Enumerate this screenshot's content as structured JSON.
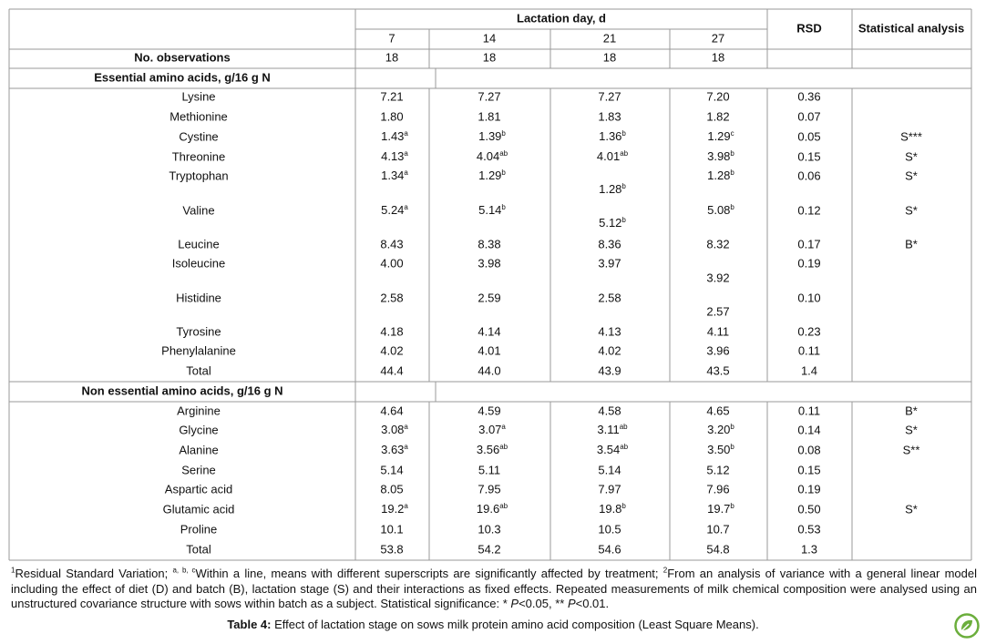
{
  "table": {
    "header": {
      "group": "Lactation day, d",
      "days": [
        "7",
        "14",
        "21",
        "27"
      ],
      "rsd": "RSD",
      "stat": "Statistical analysis"
    },
    "observations": {
      "label": "No. observations",
      "values": [
        "18",
        "18",
        "18",
        "18"
      ]
    },
    "sections": [
      {
        "title": "Essential amino acids, g/16 g N",
        "rows": [
          {
            "name": "Lysine",
            "values": [
              "7.21",
              "7.27",
              "7.27",
              "7.20"
            ],
            "rsd": "0.36"
          },
          {
            "name": "Methionine",
            "values": [
              "1.80",
              "1.81",
              "1.83",
              "1.82"
            ],
            "rsd": "0.07"
          },
          {
            "name": "Cystine",
            "values": [
              [
                "1.43",
                "a"
              ],
              [
                "1.39",
                "b"
              ],
              [
                "1.36",
                "b"
              ],
              [
                "1.29",
                "c"
              ]
            ],
            "rsd": "0.05",
            "stat": "S***"
          },
          {
            "name": "Threonine",
            "values": [
              [
                "4.13",
                "a"
              ],
              [
                "4.04",
                "ab"
              ],
              [
                "4.01",
                "ab"
              ],
              [
                "3.98",
                "b"
              ]
            ],
            "rsd": "0.15",
            "stat": "S*"
          },
          {
            "name": "Tryptophan",
            "values": [
              [
                "1.34",
                "a"
              ],
              [
                "1.29",
                "b"
              ],
              [
                "1.28",
                "b"
              ],
              [
                "1.28",
                "b"
              ]
            ],
            "rsd": "0.06",
            "stat": "S*"
          },
          {
            "name": "Valine",
            "values": [
              [
                "5.24",
                "a"
              ],
              [
                "5.14",
                "b"
              ],
              [
                "5.12",
                "b"
              ],
              [
                "5.08",
                "b"
              ]
            ],
            "rsd": "0.12",
            "stat": "S*"
          },
          {
            "name": "Leucine",
            "values": [
              "8.43",
              "8.38",
              "8.36",
              "8.32"
            ],
            "rsd": "0.17",
            "stat": "B*"
          },
          {
            "name": "Isoleucine",
            "values": [
              "4.00",
              "3.98",
              "3.97",
              "3.92"
            ],
            "rsd": "0.19"
          },
          {
            "name": "Histidine",
            "values": [
              "2.58",
              "2.59",
              "2.58",
              "2.57"
            ],
            "rsd": "0.10"
          },
          {
            "name": "Tyrosine",
            "values": [
              "4.18",
              "4.14",
              "4.13",
              "4.11"
            ],
            "rsd": "0.23"
          },
          {
            "name": "Phenylalanine",
            "values": [
              "4.02",
              "4.01",
              "4.02",
              "3.96"
            ],
            "rsd": "0.11"
          },
          {
            "name": "Total",
            "values": [
              "44.4",
              "44.0",
              "43.9",
              "43.5"
            ],
            "rsd": "1.4"
          }
        ]
      },
      {
        "title": "Non essential amino acids, g/16 g N",
        "rows": [
          {
            "name": "Arginine",
            "values": [
              "4.64",
              "4.59",
              "4.58",
              "4.65"
            ],
            "rsd": "0.11",
            "stat": "B*"
          },
          {
            "name": "Glycine",
            "values": [
              [
                "3.08",
                "a"
              ],
              [
                "3.07",
                "a"
              ],
              [
                "3.11",
                "ab"
              ],
              [
                "3.20",
                "b"
              ]
            ],
            "rsd": "0.14",
            "stat": "S*"
          },
          {
            "name": "Alanine",
            "values": [
              [
                "3.63",
                "a"
              ],
              [
                "3.56",
                "ab"
              ],
              [
                "3.54",
                "ab"
              ],
              [
                "3.50",
                "b"
              ]
            ],
            "rsd": "0.08",
            "stat": "S**"
          },
          {
            "name": "Serine",
            "values": [
              "5.14",
              "5.11",
              "5.14",
              "5.12"
            ],
            "rsd": "0.15"
          },
          {
            "name": "Aspartic acid",
            "values": [
              "8.05",
              "7.95",
              "7.97",
              "7.96"
            ],
            "rsd": "0.19"
          },
          {
            "name": "Glutamic acid",
            "values": [
              [
                "19.2",
                "a"
              ],
              [
                "19.6",
                "ab"
              ],
              [
                "19.8",
                "b"
              ],
              [
                "19.7",
                "b"
              ]
            ],
            "rsd": "0.50",
            "stat": "S*"
          },
          {
            "name": "Proline",
            "values": [
              "10.1",
              "10.3",
              "10.5",
              "10.7"
            ],
            "rsd": "0.53"
          },
          {
            "name": "Total",
            "values": [
              "53.8",
              "54.2",
              "54.6",
              "54.8"
            ],
            "rsd": "1.3"
          }
        ]
      }
    ]
  },
  "footnote": [
    {
      "text": "1",
      "style": "sup"
    },
    {
      "text": "Residual Standard Variation; "
    },
    {
      "text": "a, b, c",
      "style": "sup"
    },
    {
      "text": "Within a line, means with different superscripts are significantly affected by treatment; "
    },
    {
      "text": "2",
      "style": "sup"
    },
    {
      "text": "From an analysis of variance with a general linear model including the effect of diet (D) and batch (B), lactation stage (S) and their interactions as fixed effects. Repeated measurements of milk chemical composition were analysed using an unstructured covariance structure with sows within batch as a subject.  Statistical significance: * "
    },
    {
      "text": "P",
      "style": "i"
    },
    {
      "text": "<0.05, ** "
    },
    {
      "text": "P",
      "style": "i"
    },
    {
      "text": "<0.01."
    }
  ],
  "caption": {
    "label": "Table 4:",
    "text": " Effect of lactation stage on sows milk protein amino acid composition (Least Square Means)."
  }
}
